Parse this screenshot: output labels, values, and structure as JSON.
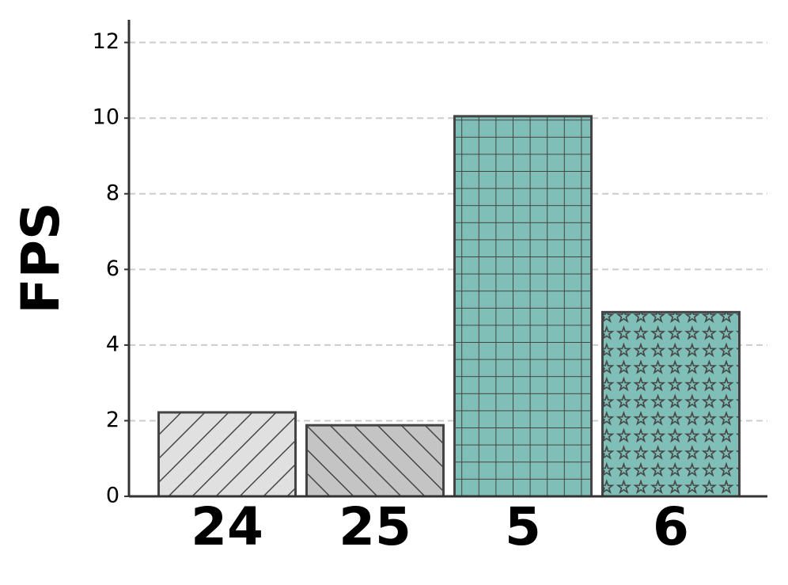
{
  "chart_data": {
    "type": "bar",
    "y_label": "FPS",
    "categories": [
      "24",
      "25",
      "5",
      "6"
    ],
    "values": [
      2.22,
      1.88,
      10.05,
      4.87
    ],
    "colors": [
      "#e0e0e0",
      "#c4c4c4",
      "#80bfb8",
      "#80bfb8"
    ],
    "hatches": [
      "/",
      "\\",
      "+",
      "*"
    ],
    "ylim": [
      0,
      12.6
    ],
    "yticks": [
      0,
      2,
      4,
      6,
      8,
      10,
      12
    ],
    "grid": true
  }
}
